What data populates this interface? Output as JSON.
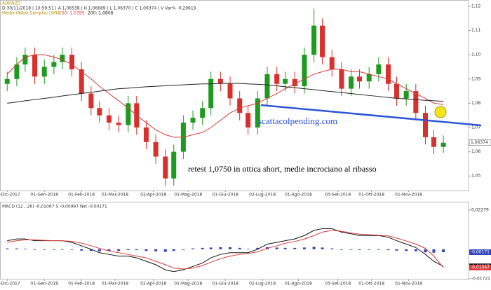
{
  "chart_data": [
    {
      "type": "candlestick",
      "symbol": "AUDNZD",
      "info": "D 30/11/2018 | 10:59:51 | A 1,06538 | H 1,06689 | L 1,06370 | C 1,06374 | V Var% -0,29619",
      "indicator": "Medie Mobili Semplici (SMA)",
      "price_label": "1,06374",
      "annotations": [
        "scattacolpending.com",
        "retest 1,0750 in ottica short, medie incrociano al ribasso"
      ],
      "x": [
        "2017-12-01",
        "2017-12-09",
        "2017-12-16",
        "2017-12-24",
        "2018-01-01",
        "2018-01-09",
        "2018-01-16",
        "2018-01-24",
        "2018-02-01",
        "2018-02-09",
        "2018-02-16",
        "2018-02-24",
        "2018-03-04",
        "2018-03-12",
        "2018-03-19",
        "2018-03-27",
        "2018-04-04",
        "2018-04-12",
        "2018-04-19",
        "2018-04-27",
        "2018-05-05",
        "2018-05-13",
        "2018-05-20",
        "2018-05-28",
        "2018-06-05",
        "2018-06-13",
        "2018-06-20",
        "2018-06-28",
        "2018-07-06",
        "2018-07-14",
        "2018-07-21",
        "2018-07-29",
        "2018-08-06",
        "2018-08-14",
        "2018-08-21",
        "2018-08-29",
        "2018-09-06",
        "2018-09-14",
        "2018-09-21",
        "2018-09-29",
        "2018-10-07",
        "2018-10-15",
        "2018-10-22",
        "2018-10-30",
        "2018-11-07",
        "2018-11-15",
        "2018-11-22",
        "2018-11-30"
      ],
      "open": [
        1.088,
        1.09,
        1.096,
        1.1,
        1.091,
        1.095,
        1.097,
        1.1,
        1.094,
        1.084,
        1.078,
        1.075,
        1.072,
        1.071,
        1.08,
        1.07,
        1.064,
        1.058,
        1.049,
        1.06,
        1.072,
        1.074,
        1.078,
        1.09,
        1.088,
        1.082,
        1.076,
        1.07,
        1.082,
        1.092,
        1.088,
        1.09,
        1.087,
        1.1,
        1.112,
        1.099,
        1.094,
        1.086,
        1.091,
        1.089,
        1.092,
        1.096,
        1.088,
        1.082,
        1.085,
        1.076,
        1.066,
        1.062
      ],
      "high": [
        1.093,
        1.099,
        1.103,
        1.103,
        1.098,
        1.1,
        1.103,
        1.103,
        1.097,
        1.087,
        1.081,
        1.078,
        1.075,
        1.083,
        1.083,
        1.073,
        1.067,
        1.061,
        1.063,
        1.075,
        1.077,
        1.081,
        1.093,
        1.093,
        1.091,
        1.085,
        1.079,
        1.085,
        1.095,
        1.095,
        1.093,
        1.093,
        1.103,
        1.119,
        1.115,
        1.102,
        1.097,
        1.094,
        1.094,
        1.095,
        1.099,
        1.099,
        1.091,
        1.088,
        1.088,
        1.079,
        1.069,
        1.0667
      ],
      "low": [
        1.085,
        1.087,
        1.093,
        1.088,
        1.088,
        1.092,
        1.094,
        1.091,
        1.081,
        1.075,
        1.072,
        1.069,
        1.068,
        1.068,
        1.067,
        1.061,
        1.055,
        1.046,
        1.046,
        1.057,
        1.069,
        1.071,
        1.075,
        1.085,
        1.079,
        1.073,
        1.067,
        1.067,
        1.079,
        1.085,
        1.085,
        1.084,
        1.084,
        1.097,
        1.096,
        1.091,
        1.083,
        1.083,
        1.086,
        1.086,
        1.089,
        1.085,
        1.079,
        1.079,
        1.073,
        1.063,
        1.059,
        1.0596
      ],
      "close": [
        1.09,
        1.096,
        1.1,
        1.091,
        1.095,
        1.097,
        1.1,
        1.094,
        1.084,
        1.078,
        1.075,
        1.072,
        1.071,
        1.08,
        1.07,
        1.064,
        1.058,
        1.049,
        1.06,
        1.072,
        1.074,
        1.078,
        1.09,
        1.088,
        1.082,
        1.076,
        1.07,
        1.082,
        1.092,
        1.088,
        1.09,
        1.087,
        1.1,
        1.112,
        1.099,
        1.094,
        1.086,
        1.091,
        1.089,
        1.092,
        1.096,
        1.088,
        1.082,
        1.085,
        1.076,
        1.066,
        1.062,
        1.06374
      ],
      "up_color": "#1e9a1e",
      "down_color": "#d8302c",
      "series": [
        {
          "label": "50: 1,0795",
          "color": "#dd3b3b",
          "values": [
            1.092,
            1.096,
            1.099,
            1.1,
            1.1,
            1.099,
            1.098,
            1.096,
            1.093,
            1.09,
            1.087,
            1.084,
            1.081,
            1.078,
            1.075,
            1.072,
            1.069,
            1.067,
            1.066,
            1.066,
            1.067,
            1.068,
            1.07,
            1.073,
            1.076,
            1.078,
            1.079,
            1.08,
            1.082,
            1.084,
            1.086,
            1.088,
            1.09,
            1.092,
            1.093,
            1.094,
            1.094,
            1.093,
            1.093,
            1.092,
            1.091,
            1.09,
            1.088,
            1.086,
            1.084,
            1.082,
            1.08,
            1.0795
          ]
        },
        {
          "label": "200: 1,0808",
          "color": "#222222",
          "values": [
            1.08,
            1.0805,
            1.081,
            1.0815,
            1.082,
            1.0825,
            1.083,
            1.0835,
            1.084,
            1.0845,
            1.085,
            1.0855,
            1.086,
            1.0862,
            1.0865,
            1.0868,
            1.087,
            1.0872,
            1.0874,
            1.0876,
            1.0878,
            1.088,
            1.088,
            1.0882,
            1.0882,
            1.0882,
            1.088,
            1.0878,
            1.0876,
            1.0872,
            1.0868,
            1.0864,
            1.086,
            1.0856,
            1.0852,
            1.0848,
            1.0844,
            1.084,
            1.0836,
            1.0832,
            1.0828,
            1.0824,
            1.082,
            1.0818,
            1.0815,
            1.0812,
            1.081,
            1.0808
          ]
        }
      ],
      "xlim": [
        "2017-11-25",
        "2018-12-21"
      ],
      "xticks": [
        {
          "value": "2017-12-01",
          "label": "01-Dic-2017"
        },
        {
          "value": "2018-01-01",
          "label": "01-Gen-2018"
        },
        {
          "value": "2018-02-01",
          "label": "01-Feb-2018"
        },
        {
          "value": "2018-03-01",
          "label": "01-Mar-2018"
        },
        {
          "value": "2018-04-02",
          "label": "02-Apr-2018"
        },
        {
          "value": "2018-05-01",
          "label": "01-Mag-2018"
        },
        {
          "value": "2018-06-01",
          "label": "01-Giu-2018"
        },
        {
          "value": "2018-07-02",
          "label": "02-Lug-2018"
        },
        {
          "value": "2018-08-01",
          "label": "01-Ago-2018"
        },
        {
          "value": "2018-09-03",
          "label": "03-Set-2018"
        },
        {
          "value": "2018-10-01",
          "label": "01-Ott-2018"
        },
        {
          "value": "2018-11-01",
          "label": "01-Nov-2018"
        }
      ],
      "ylim": [
        1.044,
        1.122
      ],
      "yticks": [
        {
          "value": 1.05,
          "label": "1,05"
        },
        {
          "value": 1.06,
          "label": "1,06"
        },
        {
          "value": 1.07,
          "label": "1,07"
        },
        {
          "value": 1.08,
          "label": "1,08"
        },
        {
          "value": 1.09,
          "label": "1,09"
        },
        {
          "value": 1.1,
          "label": "1,10"
        },
        {
          "value": 1.11,
          "label": "1,11"
        },
        {
          "value": 1.12,
          "label": "1,12"
        }
      ]
    },
    {
      "type": "macd",
      "title": "MACD  (12 , 26)  -0,01067   S  -0,00997   Nst  -0,00171",
      "histogram": {
        "color": "#3345b8",
        "last_label": "-0,00171",
        "values": [
          0.0005,
          0.0005,
          0.0003,
          0,
          -0.0001,
          0,
          0,
          -0.0003,
          -0.0008,
          -0.001,
          -0.0012,
          -0.001,
          -0.001,
          -0.0005,
          -0.0005,
          -0.001,
          -0.0012,
          -0.0015,
          -0.001,
          0,
          0.0005,
          0.0008,
          0.001,
          0.0012,
          0.0012,
          0.0008,
          0.0003,
          0.0008,
          0.0012,
          0.001,
          0.0008,
          0.0008,
          0.001,
          0.0014,
          0.001,
          0.0005,
          -0.0003,
          -0.0003,
          -0.0004,
          -0.0003,
          -0.0001,
          -0.0005,
          -0.0008,
          -0.001,
          -0.0012,
          -0.0018,
          -0.002,
          -0.00171
        ]
      },
      "series": [
        {
          "color": "#111111",
          "last_label": "-0,00997",
          "values": [
            0.005,
            0.006,
            0.006,
            0.005,
            0.005,
            0.005,
            0.005,
            0.004,
            0.002,
            0.0,
            -0.002,
            -0.003,
            -0.004,
            -0.004,
            -0.005,
            -0.007,
            -0.009,
            -0.012,
            -0.013,
            -0.012,
            -0.01,
            -0.008,
            -0.005,
            -0.003,
            -0.002,
            -0.002,
            -0.002,
            0.0,
            0.003,
            0.004,
            0.005,
            0.006,
            0.008,
            0.011,
            0.012,
            0.012,
            0.01,
            0.009,
            0.008,
            0.008,
            0.008,
            0.007,
            0.005,
            0.003,
            0.001,
            -0.003,
            -0.007,
            -0.00997
          ]
        },
        {
          "color": "#dd3b3b",
          "last_label": "-0,01067",
          "values": [
            0.004,
            0.005,
            0.0055,
            0.0055,
            0.0052,
            0.005,
            0.005,
            0.0046,
            0.0036,
            0.002,
            0.0005,
            -0.001,
            -0.002,
            -0.003,
            -0.004,
            -0.005,
            -0.007,
            -0.009,
            -0.011,
            -0.0115,
            -0.011,
            -0.0095,
            -0.0075,
            -0.0055,
            -0.004,
            -0.003,
            -0.0025,
            -0.0015,
            0.0005,
            0.002,
            0.0035,
            0.0045,
            0.006,
            0.008,
            0.01,
            0.011,
            0.0105,
            0.0095,
            0.0088,
            0.0085,
            0.0082,
            0.0078,
            0.0065,
            0.0048,
            0.003,
            0.0005,
            -0.004,
            -0.01067
          ]
        }
      ],
      "ylim": [
        -0.01721,
        0.02279
      ],
      "yticks": [
        {
          "value": 0.02279,
          "label": "0,02279"
        },
        {
          "value": -0.01721,
          "label": "-0,01721"
        }
      ]
    }
  ]
}
